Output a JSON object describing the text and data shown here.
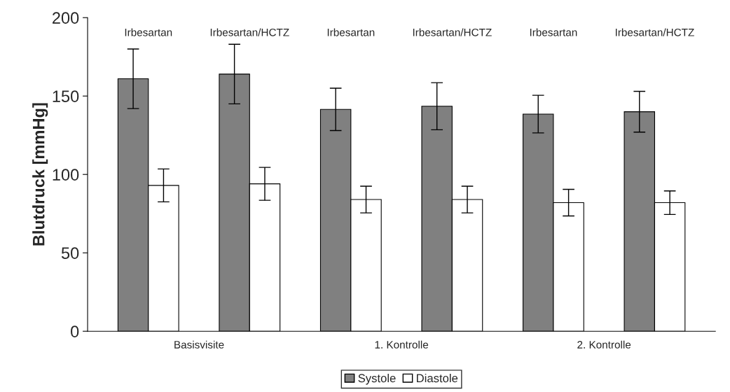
{
  "chart_data": {
    "type": "bar",
    "ylabel": "Blutdruck [mmHg]",
    "categories": [
      "Irbesartan",
      "Irbesartan/HCTZ",
      "Irbesartan",
      "Irbesartan/HCTZ",
      "Irbesartan",
      "Irbesartan/HCTZ"
    ],
    "series": [
      {
        "name": "Systole",
        "color": "#808080",
        "values": [
          161,
          164,
          141.5,
          143.5,
          138.5,
          140
        ],
        "errors": [
          19,
          19,
          13.5,
          15,
          12,
          13
        ]
      },
      {
        "name": "Diastole",
        "color": "#ffffff",
        "values": [
          93,
          94,
          84,
          84,
          82,
          82
        ],
        "errors": [
          10.5,
          10.5,
          8.5,
          8.5,
          8.5,
          7.5
        ]
      }
    ],
    "annotations": [
      "Basisvisite",
      "1. Kontrolle",
      "2. Kontrolle"
    ],
    "ylim": [
      0,
      200
    ],
    "yticks": [
      0,
      50,
      100,
      150,
      200
    ],
    "grid": false,
    "legend": "bottom"
  }
}
